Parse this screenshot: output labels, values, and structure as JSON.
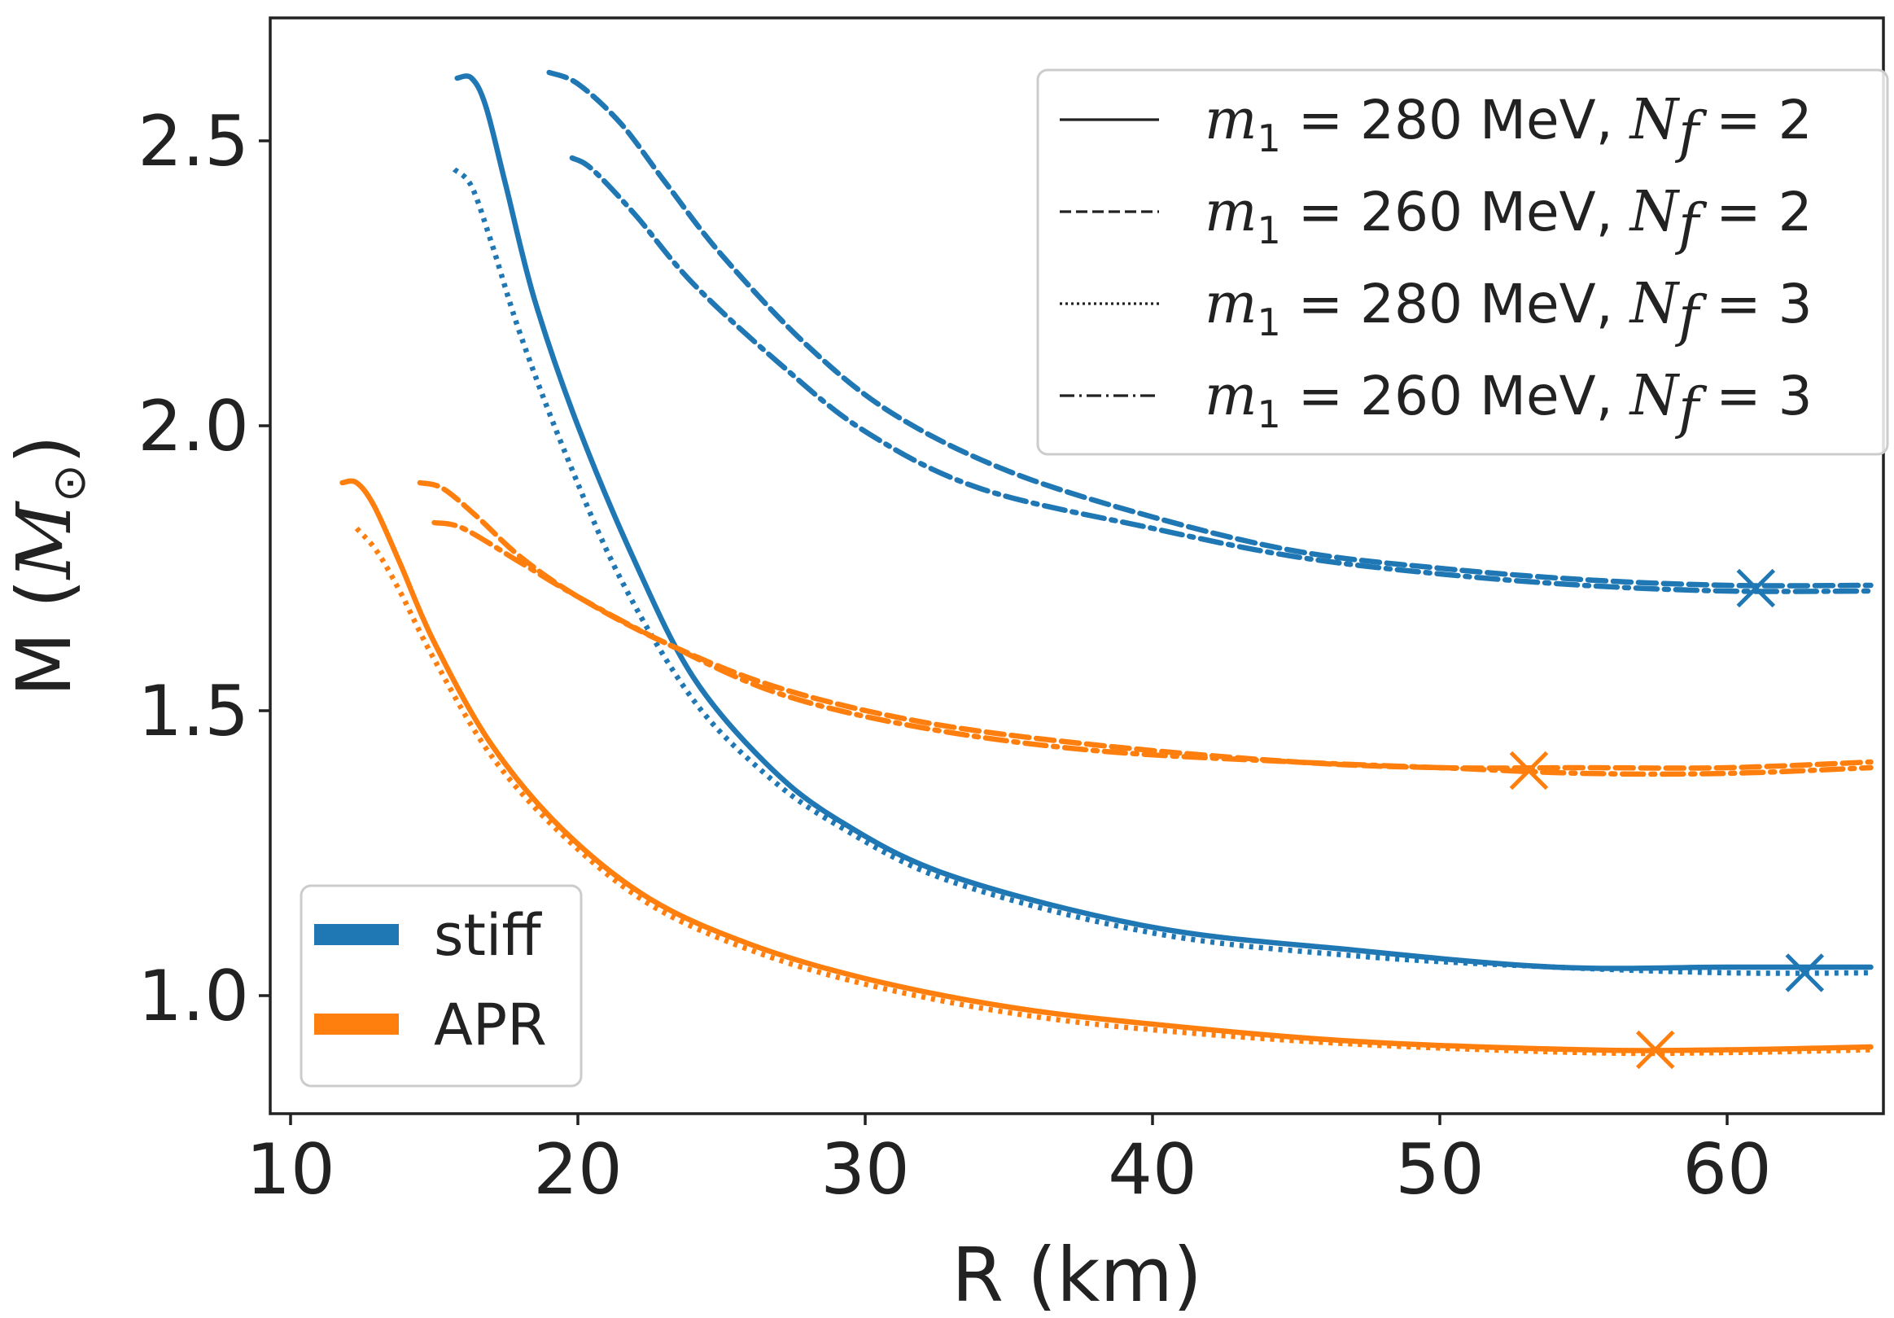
{
  "chart_data": {
    "type": "line",
    "title": "",
    "xlabel": "R (km)",
    "ylabel_main": "M (",
    "ylabel_symbol": "M",
    "ylabel_sub": "⊙",
    "ylabel_close": ")",
    "xlim": [
      9,
      65
    ],
    "ylim": [
      0.8,
      2.7
    ],
    "xticks": [
      10,
      20,
      30,
      40,
      50,
      60
    ],
    "yticks": [
      1.0,
      1.5,
      2.0,
      2.5
    ],
    "xtick_labels": [
      "10",
      "20",
      "30",
      "40",
      "50",
      "60"
    ],
    "ytick_labels": [
      "1.0",
      "1.5",
      "2.0",
      "2.5"
    ],
    "grid": false,
    "colors": {
      "stiff": "#1f77b4",
      "APR": "#ff7f0e",
      "legend_line": "#222222"
    },
    "style_legend": [
      {
        "style": "solid",
        "m1": "280",
        "Nf": "2",
        "m_sym": "m",
        "m_sub": "1",
        "eq": "=",
        "unit": "MeV,",
        "nf_sym": "N",
        "nf_sub": "f"
      },
      {
        "style": "dashed",
        "m1": "260",
        "Nf": "2",
        "m_sym": "m",
        "m_sub": "1",
        "eq": "=",
        "unit": "MeV,",
        "nf_sym": "N",
        "nf_sub": "f"
      },
      {
        "style": "dotted",
        "m1": "280",
        "Nf": "3",
        "m_sym": "m",
        "m_sub": "1",
        "eq": "=",
        "unit": "MeV,",
        "nf_sym": "N",
        "nf_sub": "f"
      },
      {
        "style": "dashdot",
        "m1": "260",
        "Nf": "3",
        "m_sym": "m",
        "m_sub": "1",
        "eq": "=",
        "unit": "MeV,",
        "nf_sym": "N",
        "nf_sub": "f"
      }
    ],
    "color_legend": [
      {
        "name": "stiff",
        "color": "#1f77b4"
      },
      {
        "name": "APR",
        "color": "#ff7f0e"
      }
    ],
    "series": [
      {
        "name": "stiff, m1=280 MeV, Nf=2",
        "eos": "stiff",
        "color": "#1f77b4",
        "style": "solid",
        "x": [
          15.8,
          16.3,
          16.8,
          17.5,
          18.5,
          20.0,
          22.0,
          24.0,
          26.5,
          29.0,
          33.0,
          40.0,
          47.0,
          54.0,
          60.0,
          65.0
        ],
        "y": [
          2.61,
          2.61,
          2.56,
          2.42,
          2.22,
          2.0,
          1.76,
          1.56,
          1.41,
          1.31,
          1.21,
          1.12,
          1.08,
          1.05,
          1.05,
          1.05
        ]
      },
      {
        "name": "stiff, m1=260 MeV, Nf=2",
        "eos": "stiff",
        "color": "#1f77b4",
        "style": "dashed",
        "x": [
          19.0,
          20.0,
          21.5,
          23.0,
          25.0,
          28.0,
          31.0,
          35.0,
          40.0,
          45.0,
          50.0,
          55.0,
          60.0,
          65.0
        ],
        "y": [
          2.62,
          2.6,
          2.53,
          2.43,
          2.3,
          2.14,
          2.02,
          1.92,
          1.84,
          1.78,
          1.75,
          1.73,
          1.72,
          1.72
        ]
      },
      {
        "name": "stiff, m1=280 MeV, Nf=3",
        "eos": "stiff",
        "color": "#1f77b4",
        "style": "dotted",
        "x": [
          15.7,
          16.3,
          17.0,
          18.0,
          19.5,
          21.5,
          24.0,
          26.5,
          29.0,
          33.0,
          40.0,
          47.0,
          54.0,
          60.0,
          65.0
        ],
        "y": [
          2.45,
          2.42,
          2.32,
          2.16,
          1.96,
          1.73,
          1.52,
          1.39,
          1.3,
          1.2,
          1.11,
          1.07,
          1.05,
          1.04,
          1.04
        ]
      },
      {
        "name": "stiff, m1=260 MeV, Nf=3",
        "eos": "stiff",
        "color": "#1f77b4",
        "style": "dashdot",
        "x": [
          19.8,
          20.5,
          22.0,
          24.0,
          27.0,
          30.0,
          34.0,
          40.0,
          45.0,
          50.0,
          55.0,
          60.0,
          65.0
        ],
        "y": [
          2.47,
          2.45,
          2.37,
          2.25,
          2.11,
          1.99,
          1.89,
          1.82,
          1.77,
          1.74,
          1.72,
          1.71,
          1.71
        ]
      },
      {
        "name": "APR, m1=280 MeV, Nf=2",
        "eos": "APR",
        "color": "#ff7f0e",
        "style": "solid",
        "x": [
          11.8,
          12.3,
          12.9,
          13.8,
          15.0,
          17.0,
          19.5,
          22.5,
          26.0,
          30.0,
          35.0,
          40.0,
          47.0,
          55.0,
          60.0,
          65.0
        ],
        "y": [
          1.9,
          1.9,
          1.86,
          1.76,
          1.62,
          1.44,
          1.29,
          1.17,
          1.09,
          1.03,
          0.98,
          0.95,
          0.92,
          0.905,
          0.905,
          0.91
        ]
      },
      {
        "name": "APR, m1=260 MeV, Nf=2",
        "eos": "APR",
        "color": "#ff7f0e",
        "style": "dashed",
        "x": [
          14.5,
          15.3,
          16.5,
          18.0,
          20.0,
          23.0,
          27.0,
          32.0,
          38.0,
          45.0,
          50.0,
          55.0,
          60.0,
          65.0
        ],
        "y": [
          1.9,
          1.89,
          1.84,
          1.77,
          1.7,
          1.62,
          1.54,
          1.48,
          1.44,
          1.41,
          1.4,
          1.4,
          1.4,
          1.41
        ]
      },
      {
        "name": "APR, m1=280 MeV, Nf=3",
        "eos": "APR",
        "color": "#ff7f0e",
        "style": "dotted",
        "x": [
          12.3,
          13.0,
          13.8,
          15.0,
          17.0,
          19.5,
          22.5,
          26.0,
          30.0,
          35.0,
          40.0,
          47.0,
          55.0,
          60.0,
          65.0
        ],
        "y": [
          1.82,
          1.78,
          1.71,
          1.59,
          1.42,
          1.28,
          1.16,
          1.08,
          1.02,
          0.97,
          0.94,
          0.915,
          0.9,
          0.9,
          0.905
        ]
      },
      {
        "name": "APR, m1=260 MeV, Nf=3",
        "eos": "APR",
        "color": "#ff7f0e",
        "style": "dashdot",
        "x": [
          15.0,
          16.0,
          18.0,
          20.0,
          23.0,
          27.0,
          32.0,
          38.0,
          45.0,
          50.0,
          55.0,
          60.0,
          65.0
        ],
        "y": [
          1.83,
          1.82,
          1.76,
          1.7,
          1.62,
          1.53,
          1.47,
          1.43,
          1.41,
          1.4,
          1.39,
          1.39,
          1.4
        ]
      }
    ],
    "markers": [
      {
        "name": "stiff-cross-upper",
        "color": "#1f77b4",
        "x": 61.0,
        "y": 1.715
      },
      {
        "name": "stiff-cross-lower",
        "color": "#1f77b4",
        "x": 62.7,
        "y": 1.04
      },
      {
        "name": "apr-cross-upper",
        "color": "#ff7f0e",
        "x": 53.1,
        "y": 1.395
      },
      {
        "name": "apr-cross-lower",
        "color": "#ff7f0e",
        "x": 57.5,
        "y": 0.905
      }
    ]
  }
}
